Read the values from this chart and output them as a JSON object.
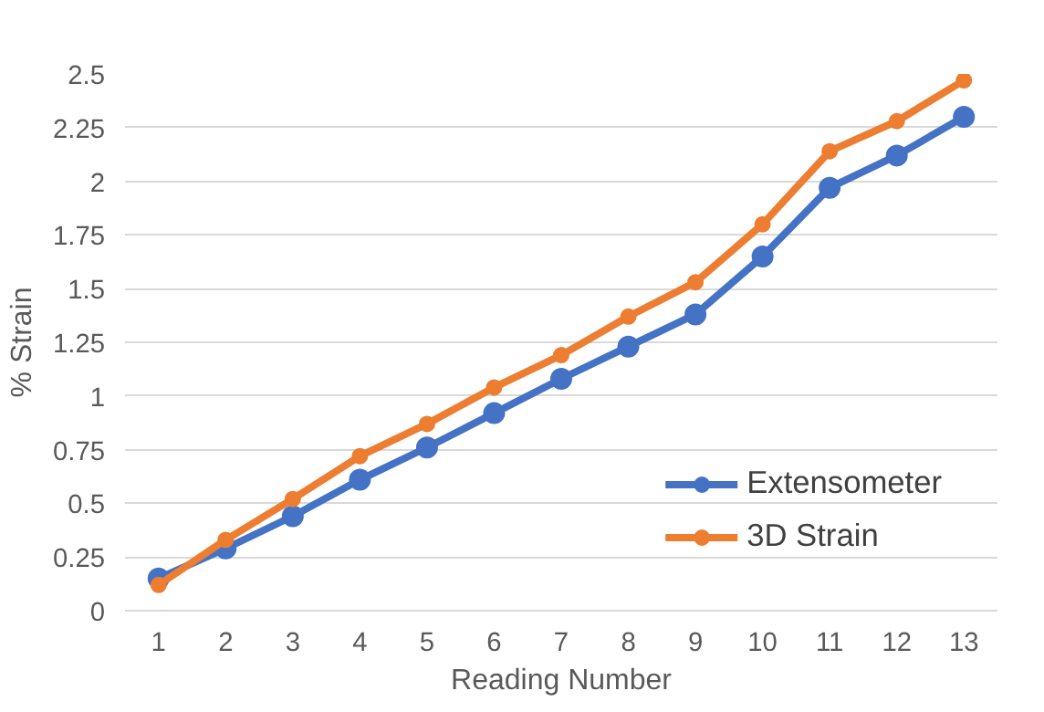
{
  "chart_data": {
    "type": "line",
    "xlabel": "Reading Number",
    "ylabel": "% Strain",
    "x": [
      1,
      2,
      3,
      4,
      5,
      6,
      7,
      8,
      9,
      10,
      11,
      12,
      13
    ],
    "series": [
      {
        "name": "Extensometer",
        "color": "#4472c4",
        "values": [
          0.15,
          0.29,
          0.44,
          0.61,
          0.76,
          0.92,
          1.08,
          1.23,
          1.38,
          1.65,
          1.97,
          2.12,
          2.3
        ]
      },
      {
        "name": "3D Strain",
        "color": "#ed7d31",
        "values": [
          0.12,
          0.33,
          0.52,
          0.72,
          0.87,
          1.04,
          1.19,
          1.37,
          1.53,
          1.8,
          2.14,
          2.28,
          2.47
        ]
      }
    ],
    "xlim": [
      0.5,
      13.5
    ],
    "xticks": [
      1,
      2,
      3,
      4,
      5,
      6,
      7,
      8,
      9,
      10,
      11,
      12,
      13
    ],
    "ylim": [
      0,
      2.5
    ],
    "yticks": [
      0,
      0.25,
      0.5,
      0.75,
      1,
      1.25,
      1.5,
      1.75,
      2,
      2.25,
      2.5
    ],
    "grid": "y",
    "legend": "bottom right",
    "marker": "circle",
    "line_style": "solid"
  }
}
